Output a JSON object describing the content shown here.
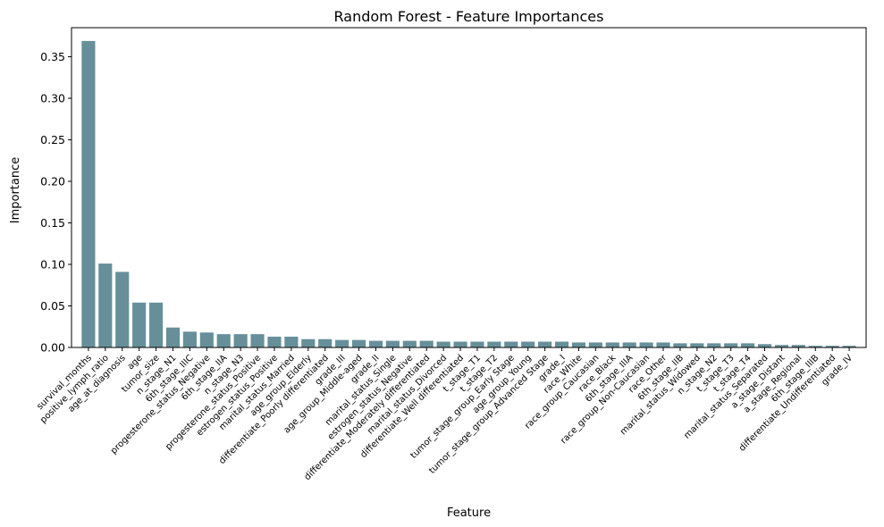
{
  "chart_data": {
    "type": "bar",
    "title": "Random Forest - Feature Importances",
    "xlabel": "Feature",
    "ylabel": "Importance",
    "ylim": [
      0,
      0.385
    ],
    "yticks": [
      "0.00",
      "0.05",
      "0.10",
      "0.15",
      "0.20",
      "0.25",
      "0.30",
      "0.35"
    ],
    "bar_color": "#668f9a",
    "grid": false,
    "categories": [
      "survival_months",
      "positive_lymph_ratio",
      "age_at_diagnosis",
      "age",
      "tumor_size",
      "n_stage_N1",
      "6th_stage_IIIC",
      "progesterone_status_Negative",
      "6th_stage_IIA",
      "n_stage_N3",
      "progesterone_status_Positive",
      "estrogen_status_Positive",
      "marital_status_Married",
      "age_group_Elderly",
      "differentiate_Poorly differentiated",
      "grade_III",
      "age_group_Middle-aged",
      "grade_II",
      "marital_status_Single",
      "estrogen_status_Negative",
      "differentiate_Moderately differentiated",
      "marital_status_Divorced",
      "differentiate_Well differentiated",
      "t_stage_T1",
      "t_stage_T2",
      "tumor_stage_group_Early Stage",
      "age_group_Young",
      "tumor_stage_group_Advanced Stage",
      "grade_I",
      "race_White",
      "race_group_Caucasian",
      "race_Black",
      "6th_stage_IIIA",
      "race_group_Non-Caucasian",
      "race_Other",
      "6th_stage_IIB",
      "marital_status_Widowed",
      "n_stage_N2",
      "t_stage_T3",
      "t_stage_T4",
      "marital_status_Separated",
      "a_stage_Distant",
      "a_stage_Regional",
      "6th_stage_IIIB",
      "differentiate_Undifferentiated",
      "grade_IV"
    ],
    "values": [
      0.369,
      0.101,
      0.091,
      0.054,
      0.054,
      0.024,
      0.019,
      0.018,
      0.016,
      0.016,
      0.016,
      0.013,
      0.013,
      0.01,
      0.01,
      0.009,
      0.009,
      0.008,
      0.008,
      0.008,
      0.008,
      0.007,
      0.007,
      0.007,
      0.007,
      0.007,
      0.007,
      0.007,
      0.007,
      0.006,
      0.006,
      0.006,
      0.006,
      0.006,
      0.006,
      0.005,
      0.005,
      0.005,
      0.005,
      0.005,
      0.004,
      0.003,
      0.003,
      0.002,
      0.002,
      0.002
    ]
  }
}
